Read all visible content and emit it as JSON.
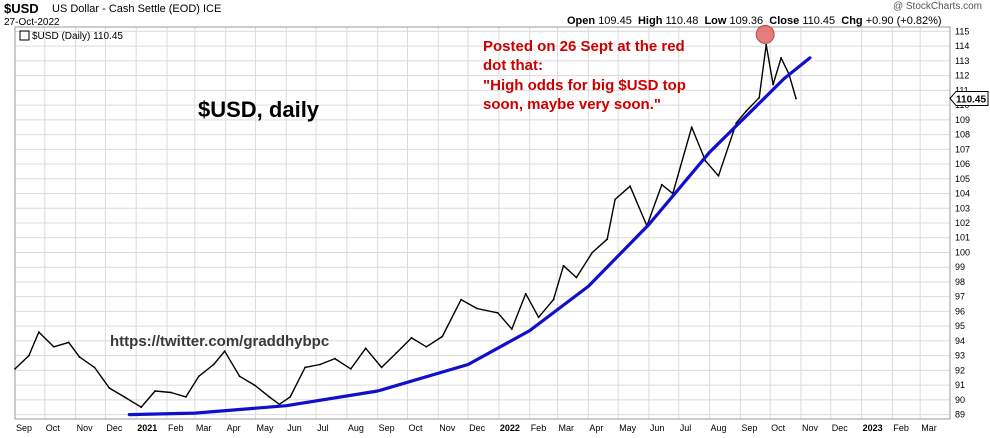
{
  "header": {
    "ticker": "$USD",
    "description": "US Dollar - Cash Settle (EOD)  ICE",
    "date": "27-Oct-2022",
    "open_label": "Open",
    "open": "109.45",
    "high_label": "High",
    "high": "110.48",
    "low_label": "Low",
    "low": "109.36",
    "close_label": "Close",
    "close": "110.45",
    "chg_label": "Chg",
    "chg": "+0.90 (+0.82%)",
    "brand": "@ StockCharts.com"
  },
  "legend": {
    "label": "$USD (Daily) 110.45"
  },
  "annotations": {
    "title": "$USD, daily",
    "twitter": "https://twitter.com/graddhybpc",
    "note_lines": [
      "Posted on 26 Sept at the red",
      "dot that:",
      "\"High odds for big $USD top",
      "soon, maybe very soon.\""
    ]
  },
  "last_price_tag": "110.45",
  "colors": {
    "price": "#000000",
    "trendline": "#1010cc",
    "dot": "#e06666",
    "note": "#cc0000",
    "grid": "#dcdcdc"
  },
  "chart_data": {
    "type": "line",
    "title": "$USD (Daily) 110.45",
    "xlabel": "",
    "ylabel": "",
    "ylim": [
      88.7,
      115.3
    ],
    "y_ticks": [
      89,
      90,
      91,
      92,
      93,
      94,
      95,
      96,
      97,
      98,
      99,
      100,
      101,
      102,
      103,
      104,
      105,
      106,
      107,
      108,
      109,
      110,
      111,
      112,
      113,
      114,
      115
    ],
    "x_ticks": [
      "Sep",
      "Oct",
      "Nov",
      "Dec",
      "2021",
      "Feb",
      "Mar",
      "Apr",
      "May",
      "Jun",
      "Jul",
      "Aug",
      "Sep",
      "Oct",
      "Nov",
      "Dec",
      "2022",
      "Feb",
      "Mar",
      "Apr",
      "May",
      "Jun",
      "Jul",
      "Aug",
      "Sep",
      "Oct",
      "Nov",
      "Dec",
      "2023",
      "Feb",
      "Mar"
    ],
    "x_start": "2020-09-01",
    "x_end": "2023-03-31",
    "grid": true,
    "series": [
      {
        "name": "$USD",
        "x": [
          "2020-09-01",
          "2020-09-15",
          "2020-09-25",
          "2020-10-10",
          "2020-10-25",
          "2020-11-05",
          "2020-11-20",
          "2020-12-05",
          "2020-12-20",
          "2021-01-06",
          "2021-01-20",
          "2021-02-05",
          "2021-02-20",
          "2021-03-05",
          "2021-03-20",
          "2021-03-31",
          "2021-04-15",
          "2021-04-30",
          "2021-05-15",
          "2021-05-25",
          "2021-06-05",
          "2021-06-20",
          "2021-07-05",
          "2021-07-20",
          "2021-08-05",
          "2021-08-20",
          "2021-09-05",
          "2021-09-20",
          "2021-10-05",
          "2021-10-20",
          "2021-11-05",
          "2021-11-24",
          "2021-12-10",
          "2021-12-31",
          "2022-01-14",
          "2022-01-28",
          "2022-02-10",
          "2022-02-25",
          "2022-03-07",
          "2022-03-20",
          "2022-04-05",
          "2022-04-20",
          "2022-04-28",
          "2022-05-13",
          "2022-05-30",
          "2022-06-14",
          "2022-06-25",
          "2022-07-14",
          "2022-07-28",
          "2022-08-10",
          "2022-08-28",
          "2022-09-07",
          "2022-09-20",
          "2022-09-27",
          "2022-10-04",
          "2022-10-12",
          "2022-10-20",
          "2022-10-27"
        ],
        "values": [
          92.1,
          93.0,
          94.6,
          93.6,
          93.9,
          92.9,
          92.2,
          90.8,
          90.2,
          89.5,
          90.6,
          90.5,
          90.2,
          91.6,
          92.4,
          93.3,
          91.6,
          91.0,
          90.2,
          89.7,
          90.2,
          92.2,
          92.4,
          92.8,
          92.1,
          93.5,
          92.2,
          93.2,
          94.2,
          93.6,
          94.3,
          96.8,
          96.2,
          95.9,
          94.8,
          97.2,
          95.6,
          96.8,
          99.1,
          98.3,
          100.0,
          100.9,
          103.6,
          104.5,
          101.8,
          104.6,
          104.0,
          108.5,
          106.2,
          105.2,
          108.8,
          109.6,
          110.5,
          114.1,
          111.4,
          113.2,
          112.1,
          110.45
        ]
      },
      {
        "name": "",
        "x": [
          "2020-12-25",
          "2021-03-01",
          "2021-06-01",
          "2021-09-01",
          "2021-12-01",
          "2022-02-01",
          "2022-04-01",
          "2022-06-01",
          "2022-08-01",
          "2022-09-15",
          "2022-10-15",
          "2022-11-10"
        ],
        "values": [
          89.0,
          89.1,
          89.6,
          90.6,
          92.4,
          94.7,
          97.7,
          101.9,
          106.8,
          109.8,
          111.8,
          113.2
        ]
      }
    ],
    "markers": [
      {
        "x": "2022-09-26",
        "y": 114.8
      }
    ]
  }
}
